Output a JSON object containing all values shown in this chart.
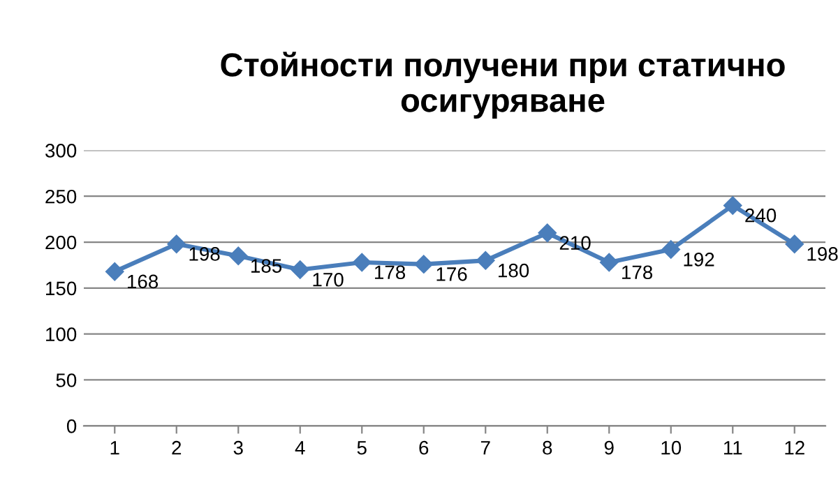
{
  "chart_data": {
    "type": "line",
    "title": "Стойности получени при статично осигуряване",
    "categories": [
      "1",
      "2",
      "3",
      "4",
      "5",
      "6",
      "7",
      "8",
      "9",
      "10",
      "11",
      "12"
    ],
    "series": [
      {
        "color": "#4a7ebb",
        "values": [
          168,
          198,
          185,
          170,
          178,
          176,
          180,
          210,
          178,
          192,
          240,
          198
        ]
      }
    ],
    "ylim": [
      0,
      300
    ],
    "yticks": [
      0,
      50,
      100,
      150,
      200,
      250,
      300
    ],
    "grid": "y",
    "marker": "diamond",
    "line_style": "solid",
    "data_labels": true,
    "legend": false
  }
}
